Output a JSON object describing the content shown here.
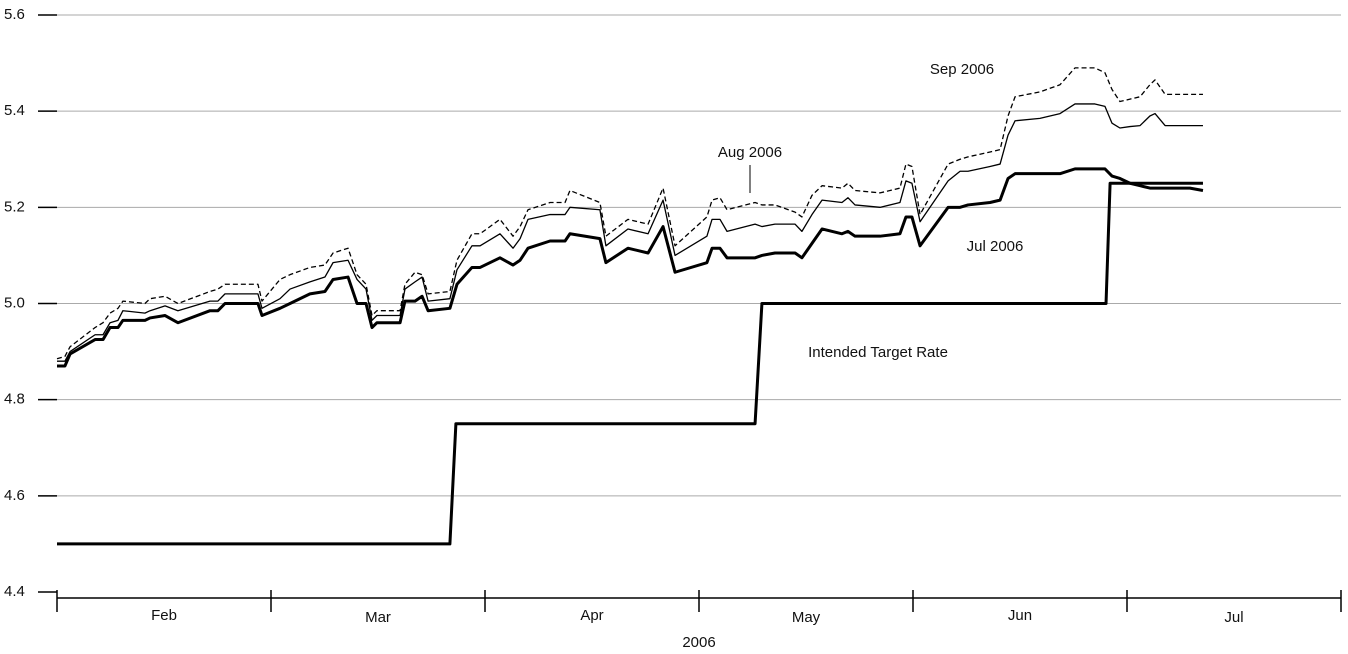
{
  "chart_data": {
    "type": "line",
    "xlabel": "2006",
    "xlim": [
      0,
      6
    ],
    "xticks": [
      {
        "value": 0.5,
        "label": "Feb"
      },
      {
        "value": 1.5,
        "label": "Mar"
      },
      {
        "value": 2.5,
        "label": "Apr"
      },
      {
        "value": 3.5,
        "label": "May"
      },
      {
        "value": 4.5,
        "label": "Jun"
      },
      {
        "value": 5.5,
        "label": "Jul"
      }
    ],
    "ylim": [
      4.4,
      5.6
    ],
    "yticks": [
      4.4,
      4.6,
      4.8,
      {
        "value": 5.0,
        "label": "5.0"
      },
      5.2,
      5.4,
      5.6
    ],
    "grid": true,
    "x": [
      0,
      0.037,
      0.061,
      0.178,
      0.215,
      0.248,
      0.285,
      0.308,
      0.411,
      0.435,
      0.505,
      0.565,
      0.715,
      0.752,
      0.785,
      0.939,
      0.958,
      1.042,
      1.089,
      1.182,
      1.252,
      1.29,
      1.36,
      1.402,
      1.444,
      1.472,
      1.495,
      1.603,
      1.626,
      1.673,
      1.706,
      1.734,
      1.836,
      1.869,
      1.939,
      1.977,
      2.07,
      2.131,
      2.164,
      2.201,
      2.304,
      2.374,
      2.397,
      2.537,
      2.565,
      2.668,
      2.762,
      2.832,
      2.888,
      3.037,
      3.061,
      3.098,
      3.131,
      3.262,
      3.294,
      3.355,
      3.449,
      3.481,
      3.528,
      3.575,
      3.668,
      3.696,
      3.729,
      3.846,
      3.939,
      3.967,
      3.995,
      4.033,
      4.164,
      4.22,
      4.257,
      4.36,
      4.407,
      4.444,
      4.477,
      4.593,
      4.687,
      4.757,
      4.85,
      4.897,
      4.93,
      4.967,
      5.014,
      5.061,
      5.107,
      5.131,
      5.178,
      5.294,
      5.355
    ],
    "series": [
      {
        "name": "Jul 2006",
        "color": "#000000",
        "line_width": 3,
        "dashed": false,
        "values": [
          4.87,
          4.87,
          4.895,
          4.925,
          4.925,
          4.95,
          4.95,
          4.965,
          4.965,
          4.97,
          4.975,
          4.96,
          4.985,
          4.985,
          5.0,
          5.0,
          4.975,
          4.99,
          5.0,
          5.02,
          5.025,
          5.05,
          5.055,
          5.0,
          5.0,
          4.95,
          4.96,
          4.96,
          5.005,
          5.005,
          5.015,
          4.985,
          4.99,
          5.04,
          5.075,
          5.075,
          5.095,
          5.08,
          5.09,
          5.115,
          5.13,
          5.13,
          5.145,
          5.135,
          5.085,
          5.115,
          5.105,
          5.16,
          5.065,
          5.085,
          5.115,
          5.115,
          5.095,
          5.095,
          5.1,
          5.105,
          5.105,
          5.095,
          5.125,
          5.155,
          5.145,
          5.15,
          5.14,
          5.14,
          5.145,
          5.18,
          5.18,
          5.12,
          5.2,
          5.2,
          5.205,
          5.21,
          5.215,
          5.26,
          5.27,
          5.27,
          5.27,
          5.28,
          5.28,
          5.28,
          5.265,
          5.26,
          5.25,
          5.245,
          5.24,
          5.24,
          5.24,
          5.24,
          5.235
        ]
      },
      {
        "name": "Aug 2006",
        "color": "#000000",
        "line_width": 1.3,
        "dashed": false,
        "values": [
          4.88,
          4.88,
          4.9,
          4.935,
          4.935,
          4.96,
          4.965,
          4.985,
          4.98,
          4.985,
          4.995,
          4.985,
          5.005,
          5.005,
          5.02,
          5.02,
          4.99,
          5.01,
          5.03,
          5.045,
          5.055,
          5.085,
          5.09,
          5.05,
          5.03,
          4.965,
          4.975,
          4.975,
          5.03,
          5.045,
          5.055,
          5.005,
          5.01,
          5.07,
          5.12,
          5.12,
          5.145,
          5.115,
          5.135,
          5.175,
          5.185,
          5.185,
          5.2,
          5.195,
          5.12,
          5.155,
          5.145,
          5.215,
          5.1,
          5.14,
          5.175,
          5.175,
          5.15,
          5.165,
          5.16,
          5.165,
          5.165,
          5.15,
          5.185,
          5.215,
          5.21,
          5.22,
          5.205,
          5.2,
          5.21,
          5.255,
          5.25,
          5.17,
          5.255,
          5.275,
          5.275,
          5.285,
          5.29,
          5.35,
          5.38,
          5.385,
          5.395,
          5.415,
          5.415,
          5.41,
          5.375,
          5.365,
          5.368,
          5.37,
          5.39,
          5.395,
          5.37,
          5.37,
          5.37
        ]
      },
      {
        "name": "Sep 2006",
        "color": "#000000",
        "line_width": 1.3,
        "dashed": true,
        "values": [
          4.885,
          4.89,
          4.91,
          4.95,
          4.96,
          4.98,
          4.99,
          5.005,
          5.0,
          5.01,
          5.015,
          5.0,
          5.025,
          5.03,
          5.04,
          5.04,
          5.005,
          5.05,
          5.06,
          5.075,
          5.08,
          5.105,
          5.115,
          5.06,
          5.04,
          4.975,
          4.985,
          4.985,
          5.04,
          5.065,
          5.06,
          5.02,
          5.025,
          5.09,
          5.145,
          5.145,
          5.175,
          5.14,
          5.16,
          5.195,
          5.21,
          5.21,
          5.235,
          5.21,
          5.14,
          5.175,
          5.165,
          5.24,
          5.12,
          5.18,
          5.215,
          5.22,
          5.195,
          5.21,
          5.205,
          5.205,
          5.19,
          5.18,
          5.225,
          5.245,
          5.24,
          5.25,
          5.235,
          5.23,
          5.24,
          5.29,
          5.285,
          5.185,
          5.29,
          5.3,
          5.305,
          5.315,
          5.32,
          5.39,
          5.43,
          5.44,
          5.455,
          5.49,
          5.49,
          5.48,
          5.445,
          5.42,
          5.425,
          5.43,
          5.455,
          5.465,
          5.435,
          5.435,
          5.435
        ]
      },
      {
        "name": "Intended Target Rate",
        "color": "#000000",
        "line_width": 3,
        "dashed": false,
        "x": [
          0,
          1.836,
          1.864,
          3.262,
          3.294,
          4.902,
          4.921,
          5.355
        ],
        "values": [
          4.5,
          4.5,
          4.75,
          4.75,
          5.0,
          5.0,
          5.25,
          5.25
        ]
      }
    ]
  }
}
